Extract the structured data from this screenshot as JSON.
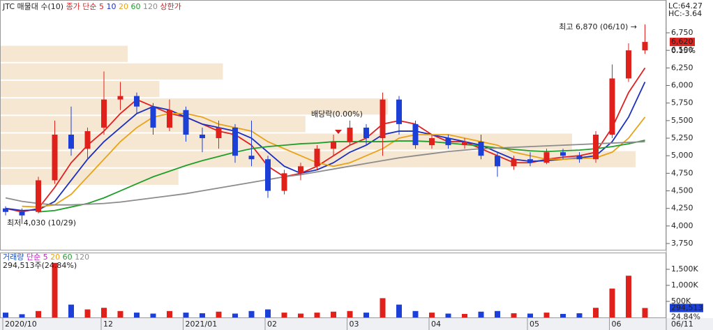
{
  "chart_data": {
    "type": "candlestick",
    "title": "JTC",
    "profile_label": "매물대 수(10)",
    "ma_label": "종가 단순 5",
    "limit_label": "상한가",
    "categories": [
      "2020/10",
      null,
      null,
      null,
      null,
      null,
      "12",
      null,
      null,
      null,
      null,
      "2021/01",
      null,
      null,
      null,
      null,
      "02",
      null,
      null,
      null,
      null,
      "03",
      null,
      null,
      null,
      null,
      "04",
      null,
      null,
      null,
      null,
      null,
      "05",
      null,
      null,
      null,
      null,
      "06",
      null,
      null
    ],
    "last_date": "06/11",
    "candles": {
      "up_color": "#e0201b",
      "down_color": "#1c3fd6",
      "open": [
        4250,
        4200,
        4200,
        4650,
        5300,
        5100,
        5400,
        5800,
        5850,
        5700,
        5400,
        5650,
        5300,
        5250,
        5400,
        5000,
        4950,
        4500,
        4750,
        4850,
        5100,
        5200,
        5400,
        5250,
        5800,
        5450,
        5150,
        5250,
        5150,
        5200,
        5000,
        4850,
        4950,
        4900,
        5050,
        5000,
        4950,
        5300,
        6100,
        6500
      ],
      "high": [
        4280,
        4250,
        4700,
        5500,
        5700,
        5400,
        6200,
        6050,
        5900,
        5750,
        5800,
        5700,
        5400,
        5500,
        5450,
        5500,
        5000,
        4800,
        4900,
        5150,
        5300,
        5500,
        5450,
        5900,
        5850,
        5500,
        5300,
        5300,
        5250,
        5300,
        5050,
        5000,
        5050,
        5100,
        5100,
        5050,
        5350,
        6300,
        6600,
        6870
      ],
      "low": [
        4150,
        4030,
        4180,
        4600,
        5000,
        4950,
        5300,
        5650,
        5600,
        5300,
        5350,
        5200,
        5050,
        5100,
        4900,
        4850,
        4400,
        4450,
        4650,
        4800,
        5000,
        5150,
        5150,
        5000,
        5300,
        5100,
        5100,
        5100,
        5100,
        4950,
        4700,
        4800,
        4850,
        4880,
        4950,
        4900,
        4900,
        5250,
        6050,
        6450
      ],
      "close": [
        4200,
        4150,
        4650,
        5300,
        5100,
        5350,
        5800,
        5850,
        5700,
        5400,
        5650,
        5300,
        5250,
        5400,
        5000,
        4950,
        4500,
        4750,
        4850,
        5100,
        5200,
        5400,
        5250,
        5800,
        5450,
        5150,
        5250,
        5150,
        5200,
        5000,
        4850,
        4950,
        4900,
        5050,
        5000,
        4950,
        5300,
        6100,
        6500,
        6620
      ]
    },
    "series": [
      {
        "name": "5",
        "color": "#e02020",
        "values": [
          4250,
          4200,
          4250,
          4550,
          4900,
          5150,
          5350,
          5600,
          5800,
          5700,
          5600,
          5550,
          5450,
          5350,
          5300,
          5150,
          4850,
          4700,
          4750,
          4850,
          5000,
          5150,
          5250,
          5450,
          5500,
          5450,
          5300,
          5200,
          5200,
          5100,
          5000,
          4900,
          4900,
          4950,
          4980,
          5000,
          5050,
          5400,
          5900,
          6250
        ]
      },
      {
        "name": "10",
        "color": "#1b2fbf",
        "values": [
          4250,
          4220,
          4230,
          4350,
          4650,
          4950,
          5200,
          5400,
          5600,
          5700,
          5650,
          5550,
          5450,
          5400,
          5350,
          5250,
          5050,
          4850,
          4750,
          4800,
          4900,
          5050,
          5150,
          5300,
          5350,
          5350,
          5300,
          5250,
          5200,
          5150,
          5050,
          4950,
          4920,
          4930,
          4950,
          4970,
          5000,
          5200,
          5550,
          6050
        ]
      },
      {
        "name": "20",
        "color": "#e8a317",
        "values": [
          null,
          4280,
          4270,
          4300,
          4450,
          4700,
          4950,
          5200,
          5400,
          5550,
          5600,
          5600,
          5550,
          5450,
          5400,
          5350,
          5200,
          5100,
          5000,
          4900,
          4850,
          4900,
          5000,
          5100,
          5250,
          5300,
          5300,
          5300,
          5250,
          5200,
          5150,
          5050,
          5000,
          4950,
          4950,
          4960,
          4970,
          5050,
          5250,
          5550
        ]
      },
      {
        "name": "60",
        "color": "#1f9e2a",
        "values": [
          null,
          null,
          4200,
          4220,
          4270,
          4320,
          4400,
          4500,
          4600,
          4700,
          4780,
          4860,
          4930,
          4990,
          5050,
          5100,
          5130,
          5150,
          5170,
          5180,
          5200,
          5200,
          5200,
          5200,
          5210,
          5210,
          5200,
          5180,
          5160,
          5140,
          5110,
          5090,
          5070,
          5060,
          5070,
          5080,
          5100,
          5130,
          5170,
          5220
        ]
      },
      {
        "name": "120",
        "color": "#8c8c8c",
        "values": [
          4400,
          4350,
          4320,
          4300,
          4300,
          4310,
          4320,
          4340,
          4370,
          4400,
          4430,
          4460,
          4500,
          4540,
          4580,
          4620,
          4660,
          4700,
          4730,
          4770,
          4810,
          4850,
          4890,
          4930,
          4970,
          5000,
          5030,
          5060,
          5080,
          5100,
          5110,
          5120,
          5130,
          5140,
          5150,
          5160,
          5170,
          5180,
          5190,
          5200
        ]
      }
    ],
    "profile": {
      "color": "#f6e7d3",
      "bins": [
        4575,
        4825,
        5075,
        5325,
        5575,
        5825,
        6075,
        6325,
        6575
      ],
      "values": [
        28,
        100,
        90,
        48,
        61,
        25,
        35,
        20
      ]
    },
    "ylim": [
      3661,
      7217
    ],
    "yticks": [
      {
        "value": 3750,
        "label": "3,750"
      },
      {
        "value": 4000,
        "label": "4,000"
      },
      {
        "value": 4250,
        "label": "4,250"
      },
      {
        "value": 4500,
        "label": "4,500"
      },
      {
        "value": 4750,
        "label": "4,750"
      },
      {
        "value": 5000,
        "label": "5,000"
      },
      {
        "value": 5250,
        "label": "5,250"
      },
      {
        "value": 5500,
        "label": "5,500"
      },
      {
        "value": 5750,
        "label": "5,750"
      },
      {
        "value": 6000,
        "label": "6,000"
      },
      {
        "value": 6250,
        "label": "6,250"
      },
      {
        "value": 6500,
        "label": "6,500"
      },
      {
        "value": 6750,
        "label": "6,750"
      }
    ],
    "current_price": {
      "value": 6620,
      "label": "6,620",
      "change": "0.15%"
    },
    "lc": "LC:64.27",
    "hc": "HC:-3.64",
    "annotations": {
      "high": "최고 6,870 (06/10) →",
      "low": "최저 4,030 (10/29)",
      "dividend": "배당락(0.00%)"
    },
    "volume": {
      "label": "거래량",
      "ma_label": "단순 5",
      "ma_periods": [
        "20",
        "60",
        "120"
      ],
      "summary": "294,513주(24.84%)",
      "values": [
        150000,
        100000,
        200000,
        1700000,
        400000,
        250000,
        300000,
        200000,
        150000,
        120000,
        200000,
        150000,
        130000,
        180000,
        120000,
        200000,
        250000,
        150000,
        120000,
        150000,
        180000,
        200000,
        150000,
        600000,
        400000,
        200000,
        150000,
        120000,
        110000,
        180000,
        200000,
        130000,
        120000,
        150000,
        110000,
        130000,
        300000,
        900000,
        1300000,
        294513
      ],
      "ylim": [
        0,
        2000000
      ],
      "yticks": [
        {
          "value": 500000,
          "label": "500K"
        },
        {
          "value": 1000000,
          "label": "1,000K"
        },
        {
          "value": 1500000,
          "label": "1,500K"
        }
      ],
      "current": {
        "value": 294513,
        "label": "294,513",
        "ratio": "24.84%"
      }
    }
  }
}
